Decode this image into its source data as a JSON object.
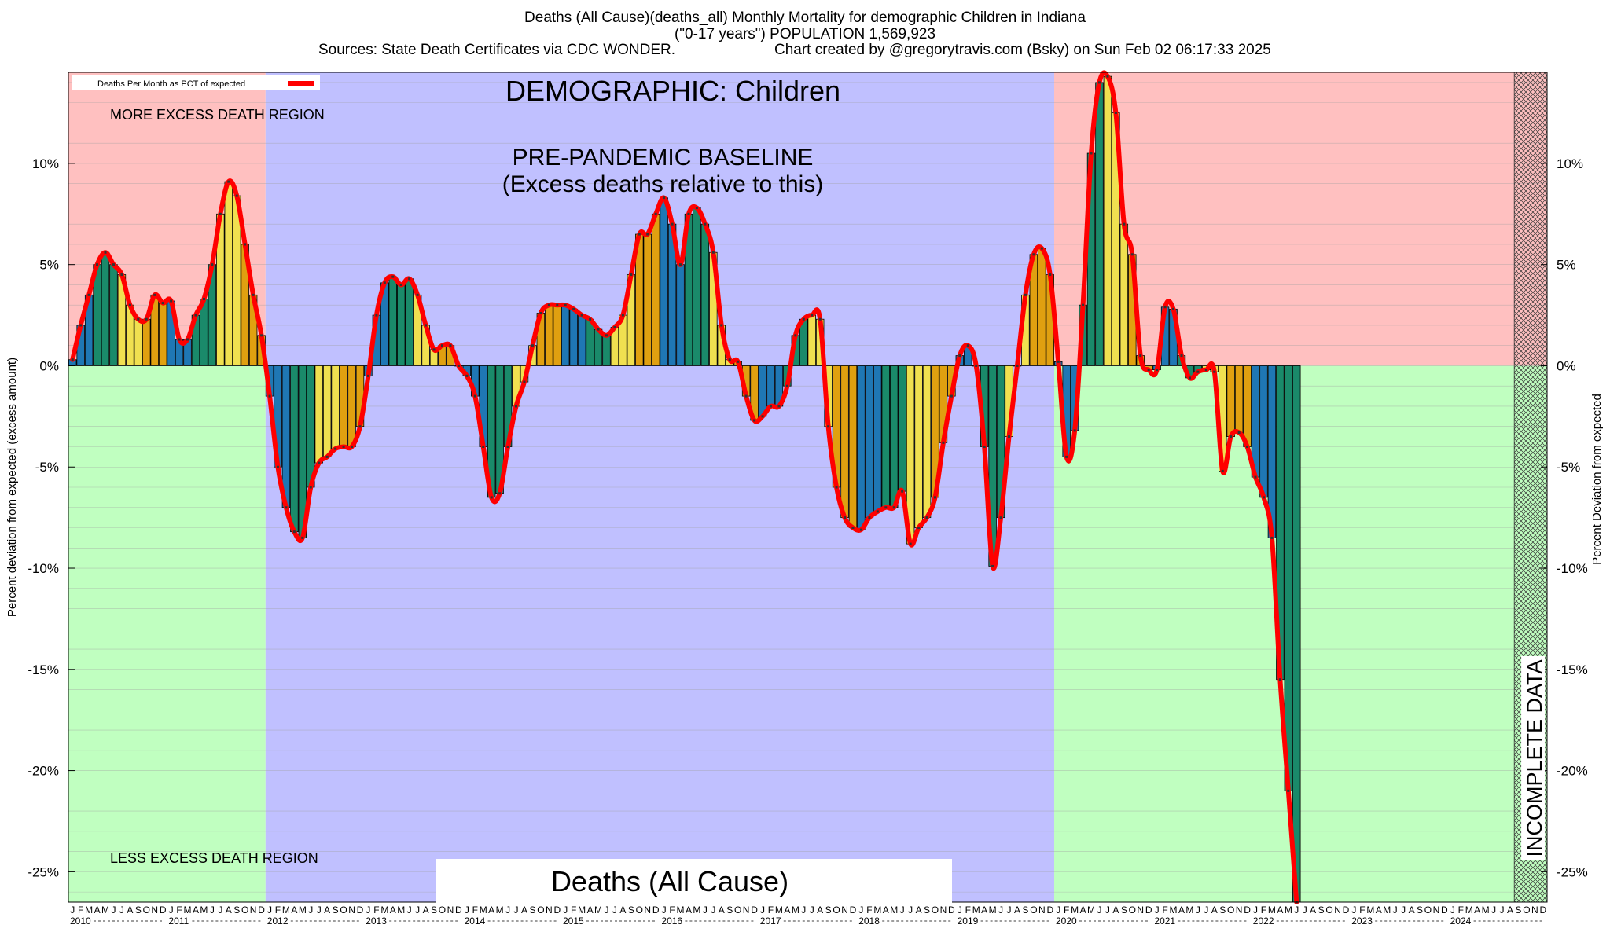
{
  "header": {
    "line1": "Deaths (All Cause)(deaths_all) Monthly Mortality for demographic Children in Indiana",
    "line2": "(\"0-17 years\") POPULATION 1,569,923",
    "line3_left": "Sources: State Death Certificates via CDC WONDER.",
    "line3_right": "Chart created by @gregorytravis.com (Bsky) on Sun Feb 02 06:17:33 2025"
  },
  "labels": {
    "legend": "Deaths Per Month as PCT of expected",
    "demographic": "DEMOGRAPHIC: Children",
    "baseline_1": "PRE-PANDEMIC BASELINE",
    "baseline_2": "(Excess deaths relative to this)",
    "more_region": "MORE EXCESS DEATH REGION",
    "less_region": "LESS EXCESS DEATH REGION",
    "deaths_box": "Deaths (All Cause)",
    "incomplete": "INCOMPLETE DATA"
  },
  "colors": {
    "more_region": "#ffc0c0",
    "less_region": "#c0ffc0",
    "baseline_region": "#c0c0ff",
    "line": "#ff0000",
    "bars": [
      "#1f77b4",
      "#1a8a6a",
      "#f0e050",
      "#e0a010"
    ]
  },
  "chart_data": {
    "type": "bar",
    "title": "Deaths (All Cause)(deaths_all) Monthly Mortality for demographic Children in Indiana",
    "ylabel": "Percent deviation from expected (excess amount)",
    "ylabel_right": "Percent Deviation from expected",
    "ylim": [
      -26.5,
      14.5
    ],
    "yticks": [
      {
        "v": 10,
        "label": "10%"
      },
      {
        "v": 5,
        "label": "5%"
      },
      {
        "v": 0,
        "label": "0%"
      },
      {
        "v": -5,
        "label": "-5%"
      },
      {
        "v": -10,
        "label": "-10%"
      },
      {
        "v": -15,
        "label": "-15%"
      },
      {
        "v": -20,
        "label": "-20%"
      },
      {
        "v": -25,
        "label": "-25%"
      }
    ],
    "month_letters": [
      "J",
      "F",
      "M",
      "A",
      "M",
      "J",
      "J",
      "A",
      "S",
      "O",
      "N",
      "D"
    ],
    "years": [
      "2010",
      "2011",
      "2012",
      "2013",
      "2014",
      "2015",
      "2016",
      "2017",
      "2018",
      "2019",
      "2020",
      "2021",
      "2022",
      "2023",
      "2024"
    ],
    "series_name": "Deaths Per Month as PCT of expected",
    "start": "2010-01",
    "values": [
      0.3,
      2.0,
      3.5,
      5.0,
      5.6,
      5.0,
      4.5,
      3.0,
      2.3,
      2.3,
      3.5,
      3.1,
      3.2,
      1.3,
      1.3,
      2.5,
      3.3,
      5.0,
      7.5,
      9.1,
      8.4,
      6.0,
      3.5,
      1.5,
      -1.5,
      -5.0,
      -7.0,
      -8.2,
      -8.5,
      -6.0,
      -4.8,
      -4.5,
      -4.1,
      -4.0,
      -4.0,
      -3.0,
      -0.5,
      2.5,
      4.1,
      4.4,
      4.0,
      4.3,
      3.5,
      2.0,
      0.8,
      1.0,
      1.0,
      0.0,
      -0.5,
      -1.5,
      -4.0,
      -6.5,
      -6.3,
      -4.0,
      -2.0,
      -0.8,
      1.0,
      2.6,
      3.0,
      3.0,
      3.0,
      2.8,
      2.5,
      2.3,
      1.8,
      1.5,
      1.9,
      2.5,
      4.5,
      6.5,
      6.5,
      7.5,
      8.3,
      7.0,
      5.0,
      7.5,
      7.8,
      7.0,
      5.6,
      2.0,
      0.3,
      0.2,
      -1.5,
      -2.7,
      -2.5,
      -2.0,
      -2.0,
      -1.0,
      1.5,
      2.3,
      2.5,
      2.3,
      -3.0,
      -6.0,
      -7.5,
      -8.0,
      -8.1,
      -7.5,
      -7.2,
      -7.0,
      -7.0,
      -6.2,
      -8.8,
      -8.0,
      -7.5,
      -6.5,
      -3.8,
      -1.5,
      0.5,
      1.0,
      0.0,
      -4.0,
      -9.9,
      -7.5,
      -3.5,
      0.0,
      3.5,
      5.5,
      5.8,
      4.5,
      0.2,
      -4.5,
      -3.2,
      3.0,
      10.5,
      14.0,
      14.3,
      12.5,
      7.0,
      5.5,
      0.5,
      -0.2,
      -0.2,
      2.9,
      2.8,
      0.5,
      -0.6,
      -0.3,
      -0.2,
      -0.3,
      -5.2,
      -3.5,
      -3.3,
      -4.0,
      -5.5,
      -6.5,
      -8.5,
      -15.5,
      -21.0,
      -26.5
    ],
    "incomplete_from_index": 176
  }
}
